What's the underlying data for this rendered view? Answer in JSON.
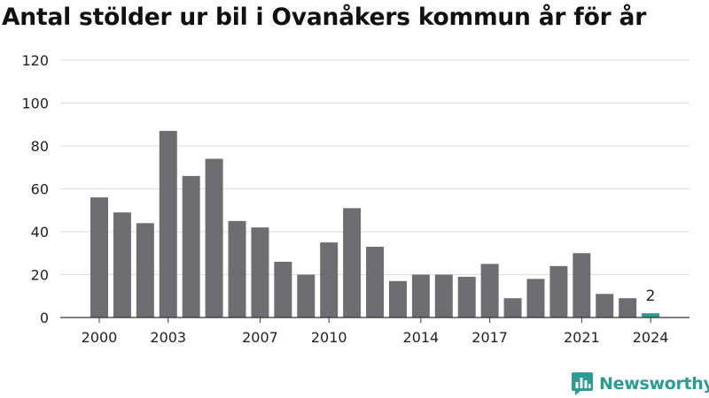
{
  "chart_data": {
    "type": "bar",
    "title": "Antal stölder ur bil i Ovanåkers kommun år för år",
    "categories": [
      "2000",
      "2001",
      "2002",
      "2003",
      "2004",
      "2005",
      "2006",
      "2007",
      "2008",
      "2009",
      "2010",
      "2011",
      "2012",
      "2013",
      "2014",
      "2015",
      "2016",
      "2017",
      "2018",
      "2019",
      "2020",
      "2021",
      "2022",
      "2023",
      "2024"
    ],
    "values": [
      56,
      49,
      44,
      87,
      66,
      74,
      45,
      42,
      26,
      20,
      35,
      51,
      33,
      17,
      20,
      20,
      19,
      25,
      9,
      18,
      24,
      30,
      11,
      9,
      2
    ],
    "x_tick_labels": [
      "2000",
      "2003",
      "2007",
      "2010",
      "2014",
      "2017",
      "2021",
      "2024"
    ],
    "y_ticks": [
      0,
      20,
      40,
      60,
      80,
      100,
      120
    ],
    "ylim": [
      0,
      120
    ],
    "xlabel": "",
    "ylabel": "",
    "grid": true,
    "highlight_label": "2",
    "colors": {
      "bar": "#6e6d72",
      "highlight": "#2a9d93",
      "grid": "#dddddd",
      "axis": "#333333",
      "text": "#222222"
    }
  },
  "brand": {
    "name": "Newsworthy",
    "icon": "newsworthy-logo-icon"
  }
}
